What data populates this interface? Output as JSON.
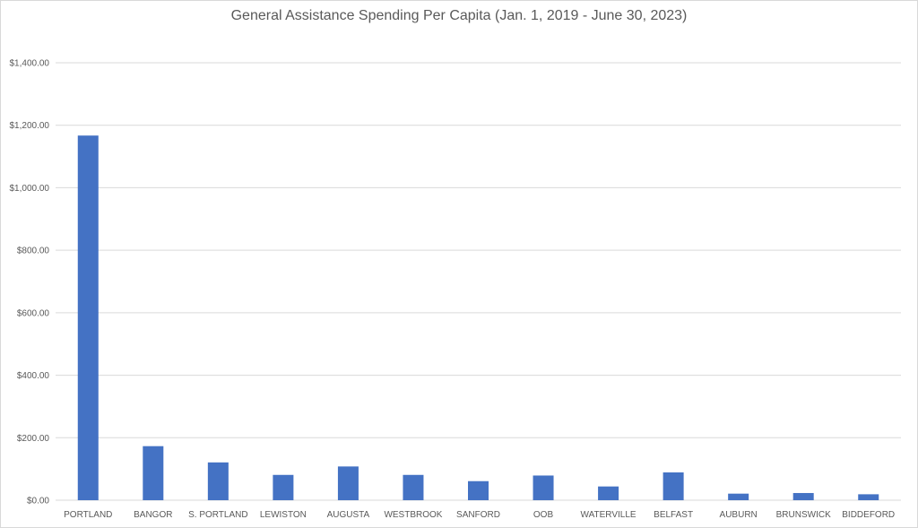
{
  "chart_data": {
    "type": "bar",
    "title": "General Assistance Spending Per Capita (Jan. 1, 2019 - June 30, 2023)",
    "xlabel": "",
    "ylabel": "",
    "categories": [
      "PORTLAND",
      "BANGOR",
      "S. PORTLAND",
      "LEWISTON",
      "AUGUSTA",
      "WESTBROOK",
      "SANFORD",
      "OOB",
      "WATERVILLE",
      "BELFAST",
      "AUBURN",
      "BRUNSWICK",
      "BIDDEFORD"
    ],
    "values": [
      1167,
      173,
      121,
      81,
      108,
      81,
      61,
      79,
      44,
      89,
      21,
      23,
      19
    ],
    "ylim": [
      0,
      1400
    ],
    "yticks": [
      0,
      200,
      400,
      600,
      800,
      1000,
      1200,
      1400
    ],
    "ytick_labels": [
      "$0.00",
      "$200.00",
      "$400.00",
      "$600.00",
      "$800.00",
      "$1,000.00",
      "$1,200.00",
      "$1,400.00"
    ],
    "grid": true,
    "legend": "none",
    "bar_color": "#4472c4"
  }
}
